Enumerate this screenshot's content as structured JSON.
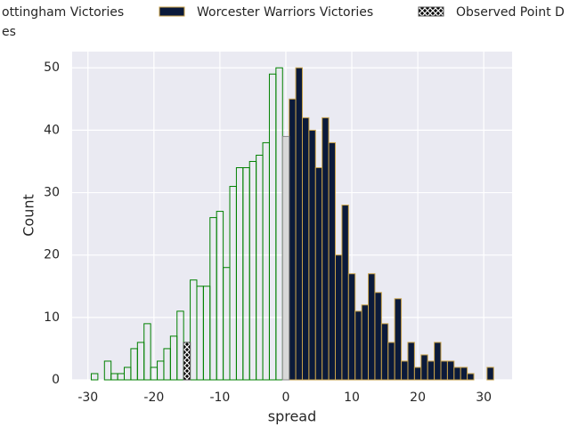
{
  "chart_data": {
    "type": "histogram",
    "xlabel": "spread",
    "ylabel": "Count",
    "xlim": [
      -32.4,
      34.3
    ],
    "ylim": [
      0,
      52.6
    ],
    "xticks": [
      -30,
      -20,
      -10,
      0,
      10,
      20,
      30
    ],
    "yticks": [
      0,
      10,
      20,
      30,
      40,
      50
    ],
    "grid": true,
    "series": [
      {
        "name": "ottingham Victories",
        "color": "#008000",
        "fill": "none",
        "bins": [
          -29.5,
          -28.5,
          -27.5,
          -26.5,
          -25.5,
          -24.5,
          -23.5,
          -22.5,
          -21.5,
          -20.5,
          -19.5,
          -18.5,
          -17.5,
          -16.5,
          -15.5,
          -14.5,
          -13.5,
          -12.5,
          -11.5,
          -10.5,
          -9.5,
          -8.5,
          -7.5,
          -6.5,
          -5.5,
          -4.5,
          -3.5,
          -2.5,
          -1.5,
          -0.5
        ],
        "values": [
          1,
          0,
          3,
          1,
          1,
          2,
          5,
          6,
          9,
          2,
          3,
          5,
          7,
          11,
          6,
          16,
          15,
          15,
          26,
          27,
          18,
          31,
          34,
          34,
          35,
          36,
          38,
          49,
          50
        ]
      },
      {
        "name": "Worcester Warriors Victories",
        "color": "#c8a24a",
        "fill": "#0b1a3a",
        "bins": [
          0.5,
          1.5,
          2.5,
          3.5,
          4.5,
          5.5,
          6.5,
          7.5,
          8.5,
          9.5,
          10.5,
          11.5,
          12.5,
          13.5,
          14.5,
          15.5,
          16.5,
          17.5,
          18.5,
          19.5,
          20.5,
          21.5,
          22.5,
          23.5,
          24.5,
          25.5,
          26.5,
          27.5,
          28.5,
          29.5,
          30.5,
          31.5
        ],
        "values": [
          45,
          50,
          42,
          40,
          34,
          42,
          38,
          20,
          28,
          17,
          11,
          12,
          17,
          14,
          9,
          6,
          13,
          3,
          6,
          2,
          4,
          3,
          6,
          3,
          3,
          2,
          2,
          1,
          0,
          0,
          2
        ]
      },
      {
        "name": "Observed Point D",
        "color": "#555555",
        "fill": "#000000",
        "hatch": true,
        "bins": [
          -15.5,
          -14.5
        ],
        "values": [
          6
        ]
      },
      {
        "name": "es",
        "color": "#888888",
        "fill": "#d8d8d8",
        "bins": [
          -0.5,
          0.5
        ],
        "values": [
          39
        ]
      }
    ]
  }
}
